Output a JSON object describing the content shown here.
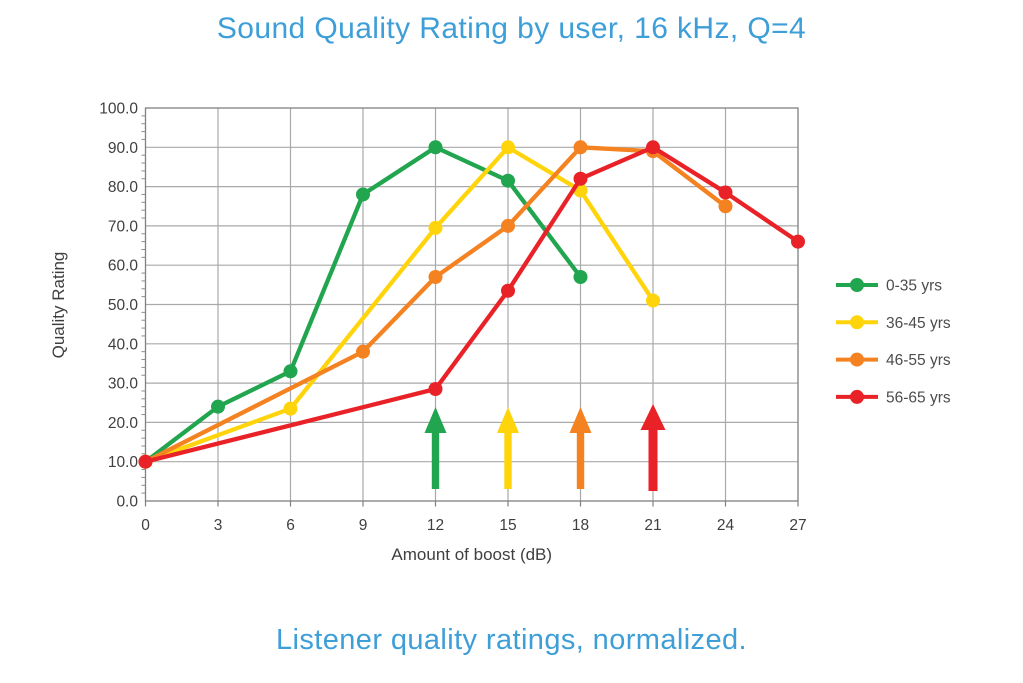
{
  "title": "Sound Quality Rating by user, 16 kHz, Q=4",
  "caption": "Listener quality ratings, normalized.",
  "colors": {
    "title_blue": "#3d9ed8",
    "axis_text": "#3f3f3f",
    "legend_text": "#4c4c4c",
    "gridline": "#a9a9a9",
    "plot_border": "#808080",
    "tick": "#8c8c8c"
  },
  "chart_data": {
    "type": "line",
    "title": "Sound Quality Rating by user, 16 kHz, Q=4",
    "subtitle": "Listener quality ratings, normalized.",
    "xlabel": "Amount of boost (dB)",
    "ylabel": "Quality Rating",
    "xlim": [
      0,
      27
    ],
    "ylim": [
      0,
      100
    ],
    "x_ticks": [
      0,
      3,
      6,
      9,
      12,
      15,
      18,
      21,
      24,
      27
    ],
    "y_ticks": [
      "0.0",
      "10.0",
      "20.0",
      "30.0",
      "40.0",
      "50.0",
      "60.0",
      "70.0",
      "80.0",
      "90.0",
      "100.0"
    ],
    "y_minor_step": 2,
    "grid": true,
    "legend_position": "right",
    "series": [
      {
        "name": "0-35 yrs",
        "color": "#21a54e",
        "points": [
          [
            0,
            10
          ],
          [
            3,
            24
          ],
          [
            6,
            33
          ],
          [
            9,
            78
          ],
          [
            12,
            90
          ],
          [
            15,
            81.5
          ],
          [
            18,
            57
          ]
        ]
      },
      {
        "name": "36-45 yrs",
        "color": "#ffd40b",
        "points": [
          [
            0,
            10
          ],
          [
            6,
            23.5
          ],
          [
            12,
            69.5
          ],
          [
            15,
            90
          ],
          [
            18,
            79
          ],
          [
            21,
            51
          ]
        ]
      },
      {
        "name": "46-55 yrs",
        "color": "#f58221",
        "points": [
          [
            0,
            10
          ],
          [
            9,
            38
          ],
          [
            12,
            57
          ],
          [
            15,
            70
          ],
          [
            18,
            90
          ],
          [
            21,
            89
          ],
          [
            24,
            75
          ]
        ]
      },
      {
        "name": "56-65 yrs",
        "color": "#e92228",
        "points": [
          [
            0,
            10
          ],
          [
            12,
            28.5
          ],
          [
            15,
            53.5
          ],
          [
            18,
            82
          ],
          [
            21,
            90
          ],
          [
            24,
            78.5
          ],
          [
            27,
            66
          ]
        ]
      }
    ],
    "annotations": {
      "up_arrows": [
        {
          "x": 12,
          "series": "0-35 yrs",
          "color": "#21a54e"
        },
        {
          "x": 15,
          "series": "36-45 yrs",
          "color": "#ffd40b"
        },
        {
          "x": 18,
          "series": "46-55 yrs",
          "color": "#f58221"
        },
        {
          "x": 21,
          "series": "56-65 yrs",
          "color": "#e92228"
        }
      ]
    }
  }
}
